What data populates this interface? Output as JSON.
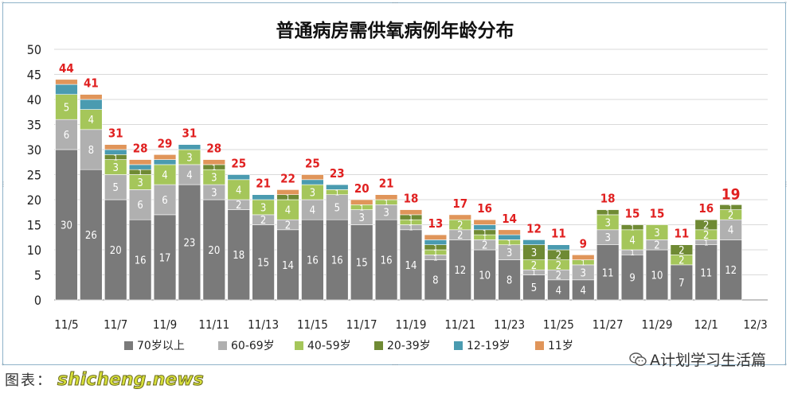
{
  "watermark": {
    "prefix": "图表：",
    "brand": "shicheng.news"
  },
  "account": {
    "name": "A计划学习生活篇",
    "icon": "wechat-icon"
  },
  "colors": {
    "age70": "#7a7a7a",
    "age60": "#b0b0b0",
    "age40": "#a5c65a",
    "age20": "#6f8a34",
    "age12": "#4a9bb0",
    "age11": "#e0955a",
    "total_label": "#e02020",
    "inner_label": "#ffffff"
  },
  "chart_data": {
    "type": "bar",
    "stacked": true,
    "title": "普通病房需供氧病例年龄分布",
    "ylim": [
      0,
      50
    ],
    "yticks": [
      0,
      5,
      10,
      15,
      20,
      25,
      30,
      35,
      40,
      45,
      50
    ],
    "grid": true,
    "legend_position": "bottom",
    "categories": [
      "11/5",
      "11/6",
      "11/7",
      "11/8",
      "11/9",
      "11/10",
      "11/11",
      "11/12",
      "11/13",
      "11/14",
      "11/15",
      "11/16",
      "11/17",
      "11/18",
      "11/19",
      "11/20",
      "11/21",
      "11/22",
      "11/23",
      "11/24",
      "11/25",
      "11/26",
      "11/27",
      "11/28",
      "11/29",
      "11/30",
      "12/1",
      "12/2",
      "12/3"
    ],
    "xtick_labels": [
      "11/5",
      "11/7",
      "11/9",
      "11/11",
      "11/13",
      "11/15",
      "11/17",
      "11/19",
      "11/21",
      "11/23",
      "11/25",
      "11/27",
      "11/29",
      "12/1",
      "12/3"
    ],
    "series": [
      {
        "name": "70岁以上",
        "values": [
          30,
          26,
          20,
          16,
          17,
          23,
          20,
          18,
          15,
          14,
          16,
          16,
          15,
          16,
          14,
          8,
          12,
          10,
          8,
          5,
          4,
          4,
          11,
          9,
          10,
          7,
          11,
          12,
          null
        ]
      },
      {
        "name": "60-69岁",
        "values": [
          6,
          8,
          5,
          6,
          6,
          4,
          3,
          2,
          2,
          2,
          4,
          5,
          3,
          3,
          1,
          1,
          2,
          2,
          3,
          1,
          2,
          3,
          3,
          1,
          2,
          0,
          1,
          4,
          null
        ]
      },
      {
        "name": "40-59岁",
        "values": [
          5,
          4,
          3,
          3,
          4,
          3,
          3,
          4,
          3,
          4,
          3,
          1,
          1,
          1,
          1,
          1,
          2,
          1,
          1,
          2,
          2,
          1,
          3,
          4,
          3,
          2,
          2,
          2,
          null
        ]
      },
      {
        "name": "20-39岁",
        "values": [
          0,
          0,
          1,
          1,
          0,
          0,
          1,
          0,
          0,
          1,
          0,
          0,
          0,
          0,
          1,
          1,
          0,
          1,
          0,
          3,
          2,
          0,
          1,
          1,
          0,
          2,
          2,
          1,
          null
        ]
      },
      {
        "name": "12-19岁",
        "values": [
          2,
          2,
          1,
          1,
          1,
          1,
          0,
          1,
          1,
          0,
          1,
          1,
          0,
          0,
          0,
          1,
          0,
          1,
          1,
          1,
          1,
          0,
          0,
          0,
          0,
          0,
          0,
          0,
          null
        ]
      },
      {
        "name": "11岁",
        "values": [
          1,
          1,
          1,
          1,
          1,
          0,
          1,
          0,
          0,
          1,
          1,
          0,
          1,
          1,
          1,
          1,
          1,
          1,
          1,
          0,
          0,
          1,
          0,
          0,
          0,
          0,
          0,
          0,
          null
        ]
      }
    ],
    "totals": [
      44,
      41,
      31,
      28,
      29,
      31,
      28,
      25,
      21,
      22,
      25,
      23,
      20,
      21,
      18,
      13,
      17,
      16,
      14,
      12,
      11,
      9,
      18,
      15,
      15,
      11,
      16,
      19,
      null
    ],
    "highlight_index": 27
  }
}
